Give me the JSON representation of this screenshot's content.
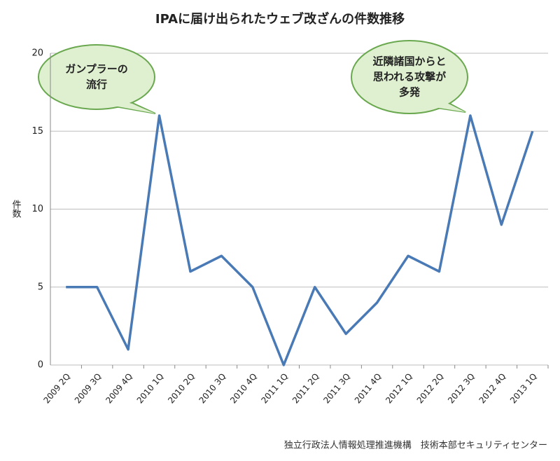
{
  "chart_data": {
    "type": "line",
    "title": "IPAに届け出られたウェブ改ざんの件数推移",
    "y_label": "件数",
    "categories": [
      "2009 2Q",
      "2009 3Q",
      "2009 4Q",
      "2010 1Q",
      "2010 2Q",
      "2010 3Q",
      "2010 4Q",
      "2011 1Q",
      "2011 2Q",
      "2011 3Q",
      "2011 4Q",
      "2012 1Q",
      "2012 2Q",
      "2012 3Q",
      "2012 4Q",
      "2013 1Q"
    ],
    "values": [
      5,
      5,
      1,
      16,
      6,
      7,
      5,
      0,
      5,
      2,
      4,
      7,
      6,
      16,
      9,
      15
    ],
    "color": "#4a7ab5",
    "ylim": [
      0,
      20
    ],
    "yticks": [
      0,
      5,
      10,
      15,
      20
    ],
    "grid": true,
    "annotations": [
      {
        "lines": [
          "ガンプラーの",
          "流行"
        ]
      },
      {
        "lines": [
          "近隣諸国からと",
          "思われる攻撃が",
          "多発"
        ]
      }
    ],
    "source": "独立行政法人情報処理推進機構　技術本部セキュリティセンター"
  }
}
